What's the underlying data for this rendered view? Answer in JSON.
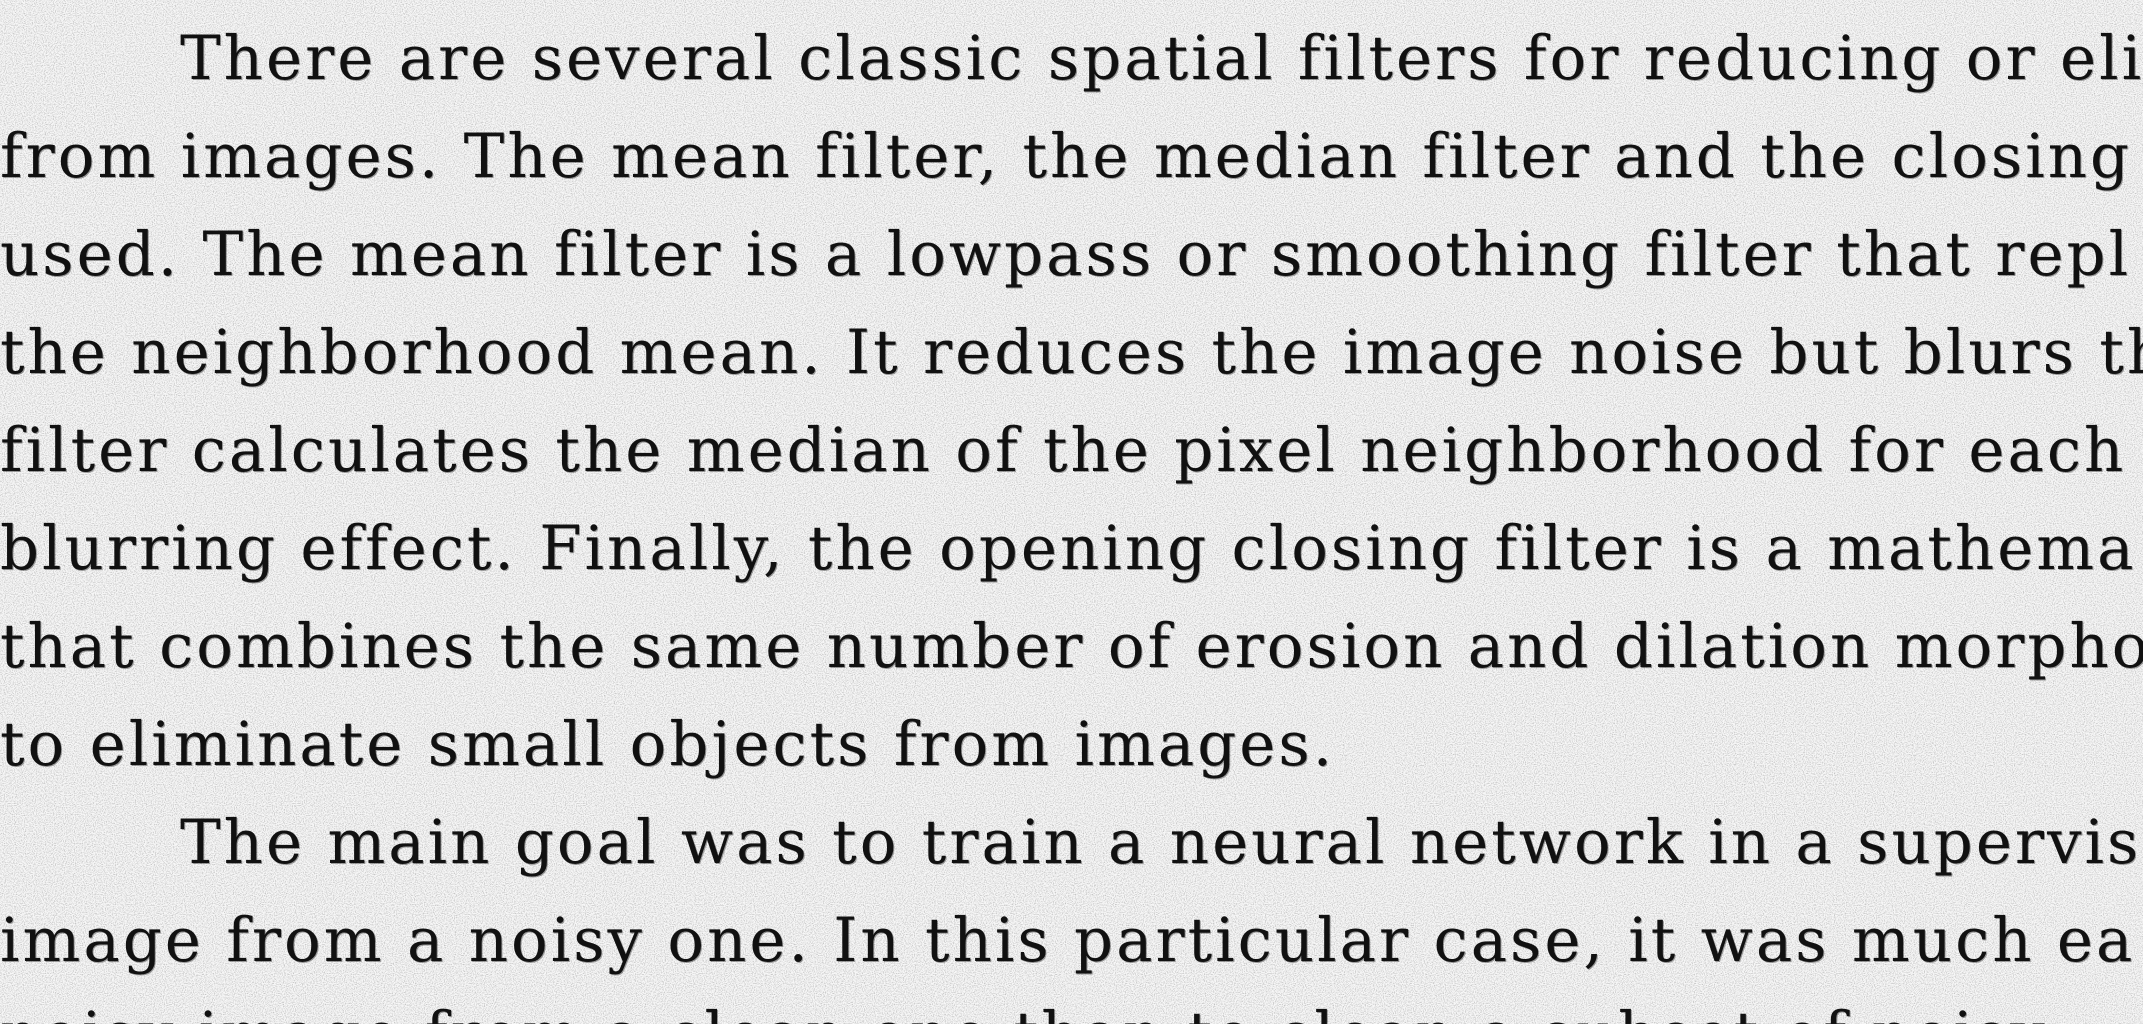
{
  "paragraphs": [
    {
      "lines": [
        "There are several classic spatial filters for reducing or elimin",
        "from images. The mean filter, the median filter and the closing o",
        "used. The mean filter is a lowpass or smoothing filter that repl",
        "the neighborhood mean. It reduces the image noise but blurs the",
        "filter calculates the median of the pixel neighborhood for each p",
        "blurring effect. Finally, the opening closing filter is a mathema",
        "that combines the same number of erosion and dilation morpho",
        "to eliminate small objects from images."
      ]
    },
    {
      "lines": [
        "The main goal was to train a neural network in a supervised",
        "image from a noisy one. In this particular case, it was much ea",
        "noisy image from a clean one than to clean a subset of noisy"
      ]
    }
  ]
}
